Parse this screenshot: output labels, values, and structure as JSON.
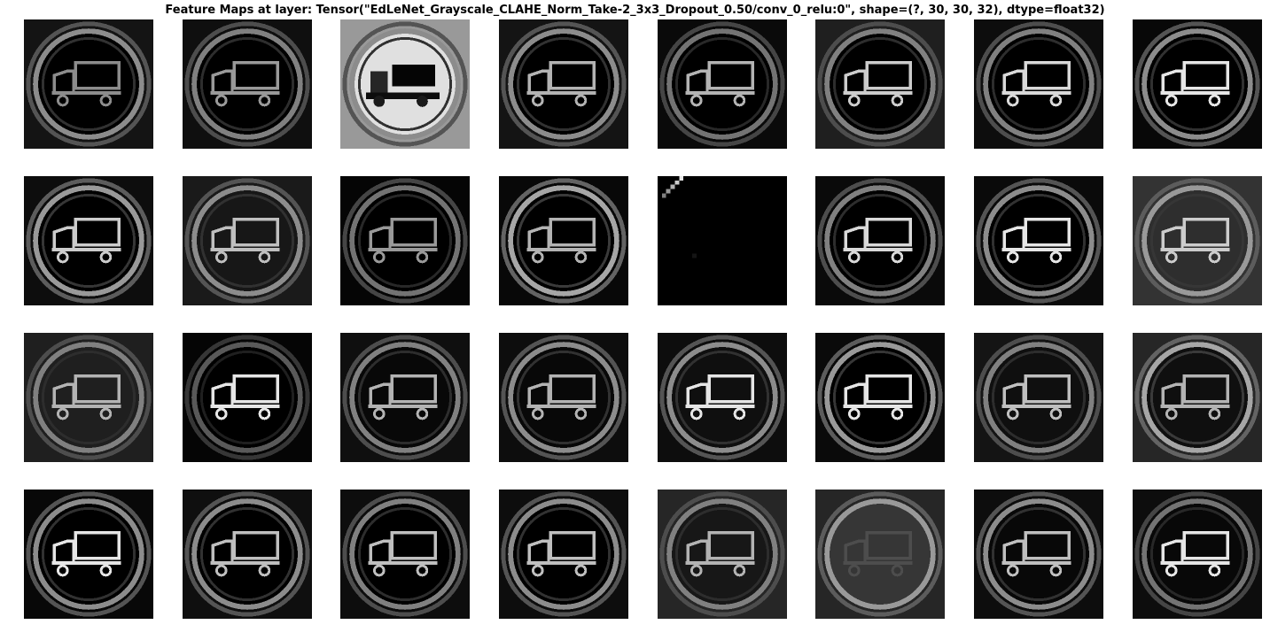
{
  "figure": {
    "title": "Feature Maps at layer: Tensor(\"EdLeNet_Grayscale_CLAHE_Norm_Take-2_3x3_Dropout_0.50/conv_0_relu:0\", shape=(?, 30, 30, 32), dtype=float32)"
  },
  "feature_maps": [
    {
      "ring": 0.55,
      "truck": 0.55,
      "bg": 0.08,
      "fill": 0.0,
      "style": "dark"
    },
    {
      "ring": 0.5,
      "truck": 0.6,
      "bg": 0.06,
      "fill": 0.0,
      "style": "dark"
    },
    {
      "ring": 0.55,
      "truck": 0.05,
      "bg": 0.6,
      "fill": 0.88,
      "style": "bright"
    },
    {
      "ring": 0.55,
      "truck": 0.7,
      "bg": 0.08,
      "fill": 0.0,
      "style": "dark"
    },
    {
      "ring": 0.45,
      "truck": 0.7,
      "bg": 0.04,
      "fill": 0.0,
      "style": "dark"
    },
    {
      "ring": 0.5,
      "truck": 0.8,
      "bg": 0.12,
      "fill": 0.0,
      "style": "dark"
    },
    {
      "ring": 0.5,
      "truck": 0.85,
      "bg": 0.05,
      "fill": 0.0,
      "style": "dark"
    },
    {
      "ring": 0.55,
      "truck": 0.9,
      "bg": 0.03,
      "fill": 0.0,
      "style": "dark"
    },
    {
      "ring": 0.6,
      "truck": 0.8,
      "bg": 0.05,
      "fill": 0.0,
      "style": "dark"
    },
    {
      "ring": 0.55,
      "truck": 0.75,
      "bg": 0.1,
      "fill": 0.15,
      "style": "dark"
    },
    {
      "ring": 0.45,
      "truck": 0.6,
      "bg": 0.02,
      "fill": 0.0,
      "style": "dark"
    },
    {
      "ring": 0.65,
      "truck": 0.7,
      "bg": 0.03,
      "fill": 0.0,
      "style": "dark"
    },
    {
      "ring": 0.0,
      "truck": 0.0,
      "bg": 0.0,
      "fill": 0.0,
      "style": "empty"
    },
    {
      "ring": 0.5,
      "truck": 0.85,
      "bg": 0.04,
      "fill": 0.0,
      "style": "dark"
    },
    {
      "ring": 0.55,
      "truck": 0.9,
      "bg": 0.04,
      "fill": 0.0,
      "style": "dark"
    },
    {
      "ring": 0.6,
      "truck": 0.8,
      "bg": 0.2,
      "fill": 0.3,
      "style": "dark"
    },
    {
      "ring": 0.5,
      "truck": 0.7,
      "bg": 0.12,
      "fill": 0.2,
      "style": "dark"
    },
    {
      "ring": 0.35,
      "truck": 0.9,
      "bg": 0.02,
      "fill": 0.0,
      "style": "dark"
    },
    {
      "ring": 0.5,
      "truck": 0.7,
      "bg": 0.06,
      "fill": 0.05,
      "style": "dark"
    },
    {
      "ring": 0.55,
      "truck": 0.7,
      "bg": 0.05,
      "fill": 0.05,
      "style": "dark"
    },
    {
      "ring": 0.55,
      "truck": 0.9,
      "bg": 0.05,
      "fill": 0.1,
      "style": "dark"
    },
    {
      "ring": 0.6,
      "truck": 0.9,
      "bg": 0.04,
      "fill": 0.0,
      "style": "dark"
    },
    {
      "ring": 0.5,
      "truck": 0.75,
      "bg": 0.08,
      "fill": 0.1,
      "style": "dark"
    },
    {
      "ring": 0.65,
      "truck": 0.7,
      "bg": 0.15,
      "fill": 0.1,
      "style": "dark"
    },
    {
      "ring": 0.55,
      "truck": 0.9,
      "bg": 0.03,
      "fill": 0.0,
      "style": "dark"
    },
    {
      "ring": 0.55,
      "truck": 0.75,
      "bg": 0.06,
      "fill": 0.0,
      "style": "dark"
    },
    {
      "ring": 0.5,
      "truck": 0.75,
      "bg": 0.05,
      "fill": 0.0,
      "style": "dark"
    },
    {
      "ring": 0.55,
      "truck": 0.75,
      "bg": 0.05,
      "fill": 0.0,
      "style": "dark"
    },
    {
      "ring": 0.5,
      "truck": 0.7,
      "bg": 0.15,
      "fill": 0.15,
      "style": "dark"
    },
    {
      "ring": 0.6,
      "truck": 0.3,
      "bg": 0.15,
      "fill": 0.35,
      "style": "dark"
    },
    {
      "ring": 0.55,
      "truck": 0.75,
      "bg": 0.05,
      "fill": 0.05,
      "style": "dark"
    },
    {
      "ring": 0.45,
      "truck": 0.9,
      "bg": 0.05,
      "fill": 0.05,
      "style": "dark"
    }
  ]
}
